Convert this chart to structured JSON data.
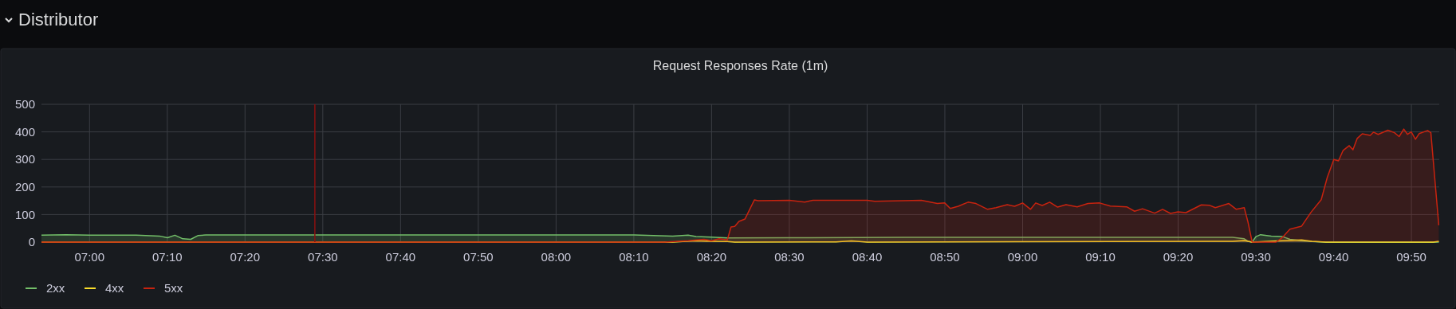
{
  "chart_data": {
    "type": "area",
    "title": "Distributor",
    "subtitle": "Request Responses Rate (1m)",
    "xlim": [
      6.897,
      9.893
    ],
    "xticks": [
      {
        "value": 7,
        "label": "07:00"
      },
      {
        "value": 7.1667,
        "label": "07:10"
      },
      {
        "value": 7.3333,
        "label": "07:20"
      },
      {
        "value": 7.5,
        "label": "07:30"
      },
      {
        "value": 7.6667,
        "label": "07:40"
      },
      {
        "value": 7.8333,
        "label": "07:50"
      },
      {
        "value": 8,
        "label": "08:00"
      },
      {
        "value": 8.1667,
        "label": "08:10"
      },
      {
        "value": 8.3333,
        "label": "08:20"
      },
      {
        "value": 8.5,
        "label": "08:30"
      },
      {
        "value": 8.6667,
        "label": "08:40"
      },
      {
        "value": 8.8333,
        "label": "08:50"
      },
      {
        "value": 9,
        "label": "09:00"
      },
      {
        "value": 9.1667,
        "label": "09:10"
      },
      {
        "value": 9.3333,
        "label": "09:20"
      },
      {
        "value": 9.5,
        "label": "09:30"
      },
      {
        "value": 9.6667,
        "label": "09:40"
      },
      {
        "value": 9.8333,
        "label": "09:50"
      }
    ],
    "ylim": [
      0,
      500
    ],
    "yticks": [
      0,
      100,
      200,
      300,
      400,
      500
    ],
    "grid": true,
    "legend": "bottom left",
    "line_style": "solid",
    "ref_lines": [
      {
        "axis": "x",
        "value": 7.483,
        "color": "#8b1010"
      }
    ],
    "series": [
      {
        "name": "2xx",
        "color": "#73bf69",
        "x": [
          6.897,
          6.95,
          7.0,
          7.1,
          7.15,
          7.167,
          7.183,
          7.2,
          7.217,
          7.233,
          7.25,
          7.5,
          7.833,
          8.0,
          8.167,
          8.25,
          8.283,
          8.3,
          8.333,
          8.367,
          8.5,
          8.75,
          9.0,
          9.25,
          9.45,
          9.475,
          9.483,
          9.492,
          9.5,
          9.51,
          9.533,
          9.557,
          9.573,
          9.598,
          9.62,
          9.65,
          9.892
        ],
        "values": [
          25,
          27,
          25,
          25,
          22,
          16,
          25,
          12,
          10,
          24,
          26,
          26,
          26,
          26,
          26,
          22,
          25,
          20,
          18,
          15,
          16,
          17,
          17,
          17,
          17,
          12,
          3,
          0,
          20,
          27,
          22,
          20,
          10,
          5,
          2,
          0,
          0
        ]
      },
      {
        "name": "4xx",
        "color": "#fade2a",
        "x": [
          6.897,
          8.25,
          8.3,
          8.333,
          8.367,
          8.383,
          8.6,
          8.633,
          8.667,
          9.45,
          9.475,
          9.492,
          9.557,
          9.598,
          9.62,
          9.65,
          9.88,
          9.892
        ],
        "values": [
          0,
          0,
          5,
          3,
          2,
          0,
          1,
          4,
          0,
          3,
          6,
          0,
          5,
          8,
          3,
          0,
          0,
          3
        ]
      },
      {
        "name": "5xx",
        "color": "#c8230f",
        "x": [
          6.897,
          8.233,
          8.283,
          8.317,
          8.333,
          8.35,
          8.367,
          8.375,
          8.383,
          8.392,
          8.405,
          8.425,
          8.433,
          8.5,
          8.533,
          8.55,
          8.667,
          8.683,
          8.783,
          8.817,
          8.833,
          8.845,
          8.862,
          8.883,
          8.9,
          8.925,
          8.943,
          8.967,
          8.983,
          9.0,
          9.017,
          9.028,
          9.042,
          9.058,
          9.075,
          9.093,
          9.117,
          9.14,
          9.165,
          9.188,
          9.223,
          9.24,
          9.257,
          9.283,
          9.3,
          9.317,
          9.333,
          9.35,
          9.383,
          9.4,
          9.413,
          9.442,
          9.458,
          9.475,
          9.483,
          9.492,
          9.543,
          9.557,
          9.573,
          9.598,
          9.618,
          9.64,
          9.653,
          9.667,
          9.677,
          9.687,
          9.7,
          9.708,
          9.717,
          9.728,
          9.745,
          9.752,
          9.762,
          9.783,
          9.797,
          9.807,
          9.817,
          9.825,
          9.833,
          9.842,
          9.85,
          9.868,
          9.875,
          9.892
        ],
        "values": [
          0,
          0,
          5,
          10,
          5,
          12,
          8,
          55,
          57,
          75,
          84,
          153,
          150,
          152,
          145,
          152,
          152,
          148,
          152,
          140,
          142,
          122,
          130,
          145,
          140,
          119,
          125,
          136,
          130,
          142,
          119,
          142,
          133,
          145,
          127,
          136,
          128,
          140,
          142,
          131,
          128,
          112,
          121,
          105,
          119,
          104,
          110,
          107,
          135,
          134,
          125,
          140,
          119,
          125,
          73,
          0,
          0,
          17,
          47,
          58,
          108,
          154,
          235,
          300,
          295,
          333,
          350,
          335,
          376,
          393,
          387,
          399,
          391,
          406,
          397,
          383,
          410,
          391,
          400,
          373,
          394,
          405,
          397,
          61
        ]
      }
    ]
  }
}
